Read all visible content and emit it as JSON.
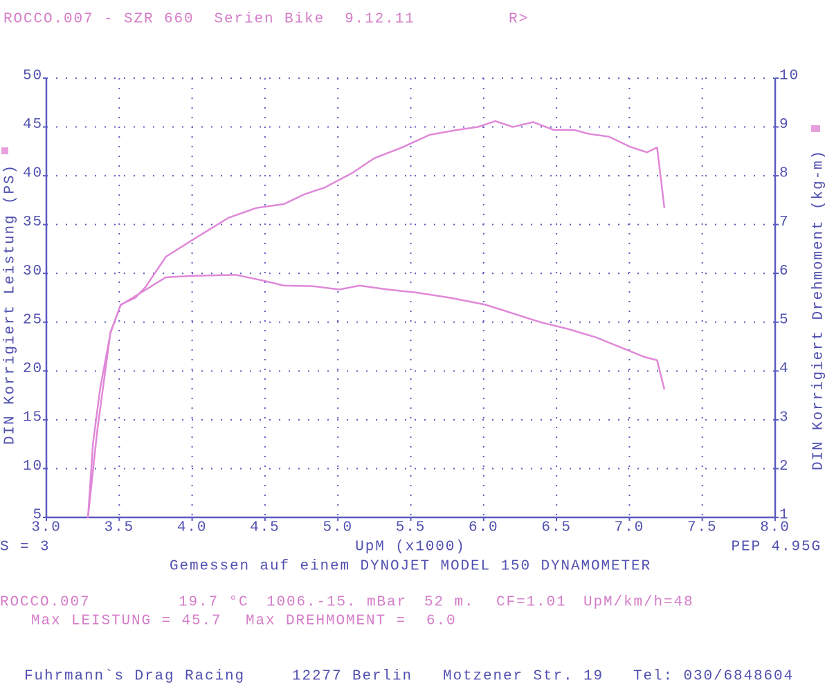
{
  "chart_data": {
    "type": "line",
    "title": "ROCCO.007 - SZR 660  Serien Bike  9.12.11",
    "subtitle": "R>",
    "y_label": "DIN Korrigiert Leistung (PS)",
    "y2_label": "DIN Korrigiert Drehmoment (kg-m)",
    "x_label": "UpM (x1000)",
    "annotations": [
      "S = 3",
      "PEP 4.95G",
      "Gemessen auf einem DYNOJET MODEL 150 DYNAMOMETER"
    ],
    "xlim": [
      3,
      8
    ],
    "xticks": [
      {
        "value": 3,
        "label": "3.0"
      },
      3.5,
      {
        "value": 4,
        "label": "4.0"
      },
      4.5,
      {
        "value": 5,
        "label": "5.0"
      },
      5.5,
      {
        "value": 6,
        "label": "6.0"
      },
      6.5,
      {
        "value": 7,
        "label": "7.0"
      },
      7.5,
      {
        "value": 8,
        "label": "8.0"
      }
    ],
    "ylim": [
      5,
      50
    ],
    "yticks": [
      5,
      10,
      15,
      20,
      25,
      30,
      35,
      40,
      45,
      50
    ],
    "y2lim": [
      1,
      10
    ],
    "y2ticks": [
      1,
      2,
      3,
      4,
      5,
      6,
      7,
      8,
      9,
      10
    ],
    "grid": true,
    "axis_color": "#5a5ac0",
    "series": [
      {
        "color": "#e088d8",
        "x": [
          3.285,
          3.32,
          3.37,
          3.44,
          3.51,
          3.61,
          3.68,
          3.82,
          4.01,
          4.25,
          4.44,
          4.63,
          4.77,
          4.91,
          5.1,
          5.25,
          5.44,
          5.63,
          5.82,
          5.96,
          6.08,
          6.2,
          6.34,
          6.48,
          6.62,
          6.72,
          6.86,
          7.0,
          7.12,
          7.19,
          7.24
        ],
        "values": [
          4.9,
          12.6,
          18.3,
          23.9,
          26.8,
          27.5,
          28.6,
          31.7,
          33.5,
          35.7,
          36.7,
          37.1,
          38.1,
          38.8,
          40.3,
          41.8,
          42.9,
          44.2,
          44.7,
          45.0,
          45.6,
          45.0,
          45.5,
          44.7,
          44.7,
          44.3,
          44.0,
          43.0,
          42.4,
          42.9,
          36.7
        ]
      },
      {
        "color": "#e088d8",
        "axis": "y2",
        "x": [
          3.285,
          3.35,
          3.44,
          3.51,
          3.63,
          3.82,
          4.01,
          4.3,
          4.49,
          4.63,
          4.82,
          5.01,
          5.15,
          5.34,
          5.53,
          5.77,
          6.01,
          6.2,
          6.39,
          6.58,
          6.77,
          6.96,
          7.1,
          7.19,
          7.24
        ],
        "values": [
          1.0,
          2.8,
          4.8,
          5.35,
          5.57,
          5.92,
          5.95,
          5.97,
          5.85,
          5.75,
          5.74,
          5.67,
          5.75,
          5.67,
          5.61,
          5.5,
          5.36,
          5.18,
          5.0,
          4.86,
          4.69,
          4.46,
          4.29,
          4.22,
          3.62
        ]
      }
    ]
  },
  "info": [
    "ROCCO.007",
    "19.7 °C",
    "1006.-15. mBar",
    "52 m.",
    "CF=1.01",
    "UpM/km/h=48"
  ],
  "max": [
    "Max LEISTUNG = 45.7",
    "Max DREHMOMENT =  6.0"
  ],
  "footer": [
    "Fuhrmann`s Drag Racing",
    "12277 Berlin",
    "Motzener Str. 19",
    "Tel: 030/6848604"
  ]
}
